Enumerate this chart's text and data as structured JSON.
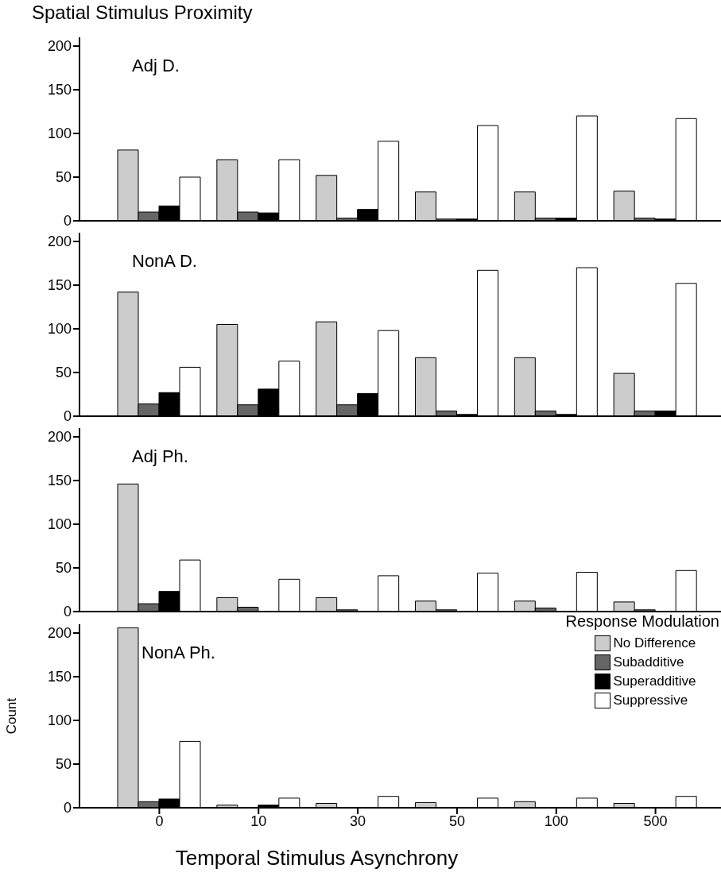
{
  "chart_data": [
    {
      "type": "bar",
      "title": "Spatial Stimulus Proximity",
      "subtitle": "Adj D.",
      "categories": [
        "0",
        "10",
        "30",
        "50",
        "100",
        "500"
      ],
      "series": [
        {
          "color": "#cccccc",
          "values": [
            81,
            70,
            52,
            33,
            33,
            34
          ]
        },
        {
          "color": "#666666",
          "values": [
            10,
            10,
            3,
            2,
            3,
            3
          ]
        },
        {
          "color": "#000000",
          "values": [
            17,
            9,
            13,
            2,
            3,
            2
          ]
        },
        {
          "color": "#ffffff",
          "values": [
            50,
            70,
            91,
            109,
            120,
            117
          ]
        }
      ],
      "ylim": [
        0,
        210
      ],
      "yticks": [
        0,
        50,
        100,
        150,
        200
      ],
      "grid": false,
      "legend": false,
      "tick_labels": "y"
    },
    {
      "type": "bar",
      "subtitle": "NonA D.",
      "categories": [
        "0",
        "10",
        "30",
        "50",
        "100",
        "500"
      ],
      "series": [
        {
          "color": "#cccccc",
          "values": [
            142,
            105,
            108,
            67,
            67,
            49
          ]
        },
        {
          "color": "#666666",
          "values": [
            14,
            13,
            13,
            6,
            6,
            6
          ]
        },
        {
          "color": "#000000",
          "values": [
            27,
            31,
            26,
            2,
            2,
            6
          ]
        },
        {
          "color": "#ffffff",
          "values": [
            56,
            63,
            98,
            167,
            170,
            152
          ]
        }
      ],
      "ylim": [
        0,
        210
      ],
      "yticks": [
        0,
        50,
        100,
        150,
        200
      ],
      "grid": false,
      "legend": false,
      "tick_labels": "y"
    },
    {
      "type": "bar",
      "subtitle": "Adj Ph.",
      "categories": [
        "0",
        "10",
        "30",
        "50",
        "100",
        "500"
      ],
      "series": [
        {
          "color": "#cccccc",
          "values": [
            146,
            16,
            16,
            12,
            12,
            11
          ]
        },
        {
          "color": "#666666",
          "values": [
            9,
            5,
            2,
            2,
            4,
            2
          ]
        },
        {
          "color": "#000000",
          "values": [
            23,
            null,
            0,
            null,
            0,
            0
          ]
        },
        {
          "color": "#ffffff",
          "values": [
            59,
            37,
            41,
            44,
            45,
            47
          ]
        }
      ],
      "ylim": [
        0,
        210
      ],
      "yticks": [
        0,
        50,
        100,
        150,
        200
      ],
      "grid": false,
      "legend": false,
      "tick_labels": "y"
    },
    {
      "type": "bar",
      "subtitle": "NonA Ph.",
      "xlabel": "Temporal Stimulus Asynchrony",
      "ylabel": "Count",
      "legend_title": "Response Modulation",
      "categories": [
        "0",
        "10",
        "30",
        "50",
        "100",
        "500"
      ],
      "series": [
        {
          "name": "No Difference",
          "color": "#cccccc",
          "values": [
            206,
            3,
            5,
            6,
            7,
            5
          ]
        },
        {
          "name": "Subadditive",
          "color": "#666666",
          "values": [
            7,
            0,
            0,
            0,
            0,
            0
          ]
        },
        {
          "name": "Superadditive",
          "color": "#000000",
          "values": [
            10,
            3,
            0,
            0,
            0,
            0
          ]
        },
        {
          "name": "Suppressive",
          "color": "#ffffff",
          "values": [
            76,
            11,
            13,
            11,
            11,
            13
          ]
        }
      ],
      "ylim": [
        0,
        210
      ],
      "yticks": [
        0,
        50,
        100,
        150,
        200
      ],
      "grid": false,
      "legend": "top right"
    }
  ]
}
